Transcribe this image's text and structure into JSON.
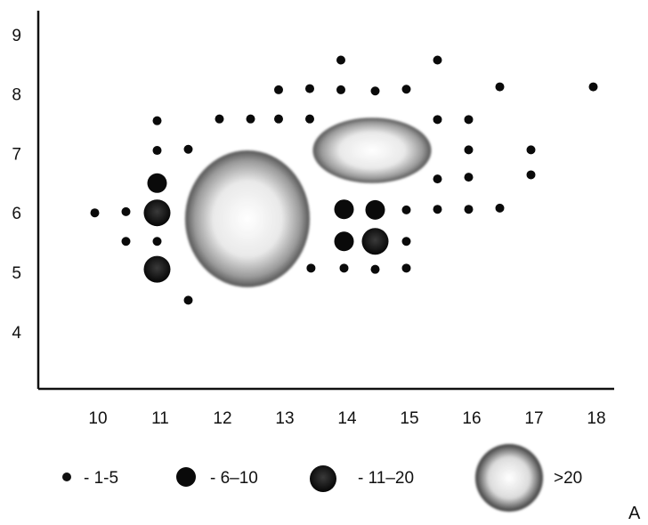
{
  "chart_data": {
    "type": "scatter",
    "title": "",
    "xlabel": "",
    "ylabel": "",
    "xlim": [
      9.5,
      18.3
    ],
    "ylim": [
      3.2,
      9.45
    ],
    "x_ticks": [
      "10",
      "11",
      "12",
      "13",
      "14",
      "15",
      "16",
      "17",
      "18"
    ],
    "y_ticks": [
      "4",
      "5",
      "6",
      "7",
      "8",
      "9"
    ],
    "grid": false,
    "legend_position": "bottom",
    "corner_label": "A",
    "legend": [
      {
        "key": "1-5",
        "text": "- 1-5"
      },
      {
        "key": "6-10",
        "text": "- 6–10"
      },
      {
        "key": "11-20",
        "text": "- 11–20"
      },
      {
        "key": ">20",
        "text": ">20"
      }
    ],
    "clusters": [
      {
        "category": ">20",
        "x": 12.4,
        "y": 5.9,
        "width_units": 2.0,
        "height_units": 2.3
      },
      {
        "category": ">20",
        "x": 14.4,
        "y": 7.05,
        "width_units": 1.9,
        "height_units": 1.1
      }
    ],
    "points": [
      {
        "x": 9.95,
        "y": 6.0,
        "category": "1-5"
      },
      {
        "x": 10.45,
        "y": 6.02,
        "category": "1-5"
      },
      {
        "x": 10.45,
        "y": 5.52,
        "category": "1-5"
      },
      {
        "x": 10.95,
        "y": 7.55,
        "category": "1-5"
      },
      {
        "x": 10.95,
        "y": 7.05,
        "category": "1-5"
      },
      {
        "x": 10.95,
        "y": 6.5,
        "category": "6-10"
      },
      {
        "x": 10.95,
        "y": 6.0,
        "category": "11-20"
      },
      {
        "x": 10.95,
        "y": 5.52,
        "category": "1-5"
      },
      {
        "x": 10.95,
        "y": 5.05,
        "category": "11-20"
      },
      {
        "x": 11.45,
        "y": 7.07,
        "category": "1-5"
      },
      {
        "x": 11.45,
        "y": 4.53,
        "category": "1-5"
      },
      {
        "x": 11.95,
        "y": 7.58,
        "category": "1-5"
      },
      {
        "x": 12.45,
        "y": 7.58,
        "category": "1-5"
      },
      {
        "x": 12.9,
        "y": 8.07,
        "category": "1-5"
      },
      {
        "x": 12.9,
        "y": 7.58,
        "category": "1-5"
      },
      {
        "x": 13.4,
        "y": 8.09,
        "category": "1-5"
      },
      {
        "x": 13.4,
        "y": 7.58,
        "category": "1-5"
      },
      {
        "x": 13.42,
        "y": 5.07,
        "category": "1-5"
      },
      {
        "x": 13.9,
        "y": 8.57,
        "category": "1-5"
      },
      {
        "x": 13.9,
        "y": 8.07,
        "category": "1-5"
      },
      {
        "x": 13.95,
        "y": 6.06,
        "category": "6-10"
      },
      {
        "x": 13.95,
        "y": 5.52,
        "category": "6-10"
      },
      {
        "x": 13.95,
        "y": 5.07,
        "category": "1-5"
      },
      {
        "x": 14.45,
        "y": 8.05,
        "category": "1-5"
      },
      {
        "x": 14.45,
        "y": 6.05,
        "category": "6-10"
      },
      {
        "x": 14.45,
        "y": 5.52,
        "category": "11-20"
      },
      {
        "x": 14.45,
        "y": 5.05,
        "category": "1-5"
      },
      {
        "x": 14.95,
        "y": 8.08,
        "category": "1-5"
      },
      {
        "x": 14.95,
        "y": 6.05,
        "category": "1-5"
      },
      {
        "x": 14.95,
        "y": 5.52,
        "category": "1-5"
      },
      {
        "x": 14.95,
        "y": 5.07,
        "category": "1-5"
      },
      {
        "x": 15.45,
        "y": 8.57,
        "category": "1-5"
      },
      {
        "x": 15.45,
        "y": 7.57,
        "category": "1-5"
      },
      {
        "x": 15.45,
        "y": 6.57,
        "category": "1-5"
      },
      {
        "x": 15.45,
        "y": 6.06,
        "category": "1-5"
      },
      {
        "x": 15.95,
        "y": 7.57,
        "category": "1-5"
      },
      {
        "x": 15.95,
        "y": 7.06,
        "category": "1-5"
      },
      {
        "x": 15.95,
        "y": 6.6,
        "category": "1-5"
      },
      {
        "x": 15.95,
        "y": 6.06,
        "category": "1-5"
      },
      {
        "x": 16.45,
        "y": 8.12,
        "category": "1-5"
      },
      {
        "x": 16.45,
        "y": 6.08,
        "category": "1-5"
      },
      {
        "x": 16.95,
        "y": 7.06,
        "category": "1-5"
      },
      {
        "x": 16.95,
        "y": 6.64,
        "category": "1-5"
      },
      {
        "x": 17.95,
        "y": 8.12,
        "category": "1-5"
      }
    ]
  }
}
